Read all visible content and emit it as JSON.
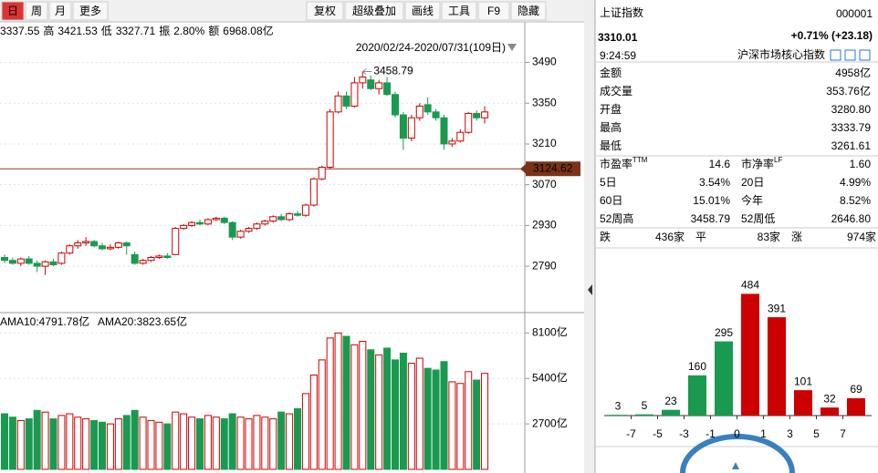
{
  "toolbar": {
    "left": [
      "日",
      "周",
      "月",
      "更多"
    ],
    "right": [
      "复权",
      "超级叠加",
      "画线",
      "工具",
      "F9",
      "隐藏"
    ]
  },
  "info_bar": [
    "3337.55",
    "高",
    "3421.53",
    "低",
    "3327.71",
    "振",
    "2.80%",
    "额",
    "6968.08亿"
  ],
  "kline": {
    "range": "2020/02/24-2020/07/31(109日)",
    "ylim": [
      2640,
      3570
    ],
    "yticks": [
      2790,
      2930,
      3070,
      3210,
      3350,
      3490
    ],
    "reference": {
      "value": 3124.62,
      "label": "3124.62"
    },
    "high_note": {
      "value": 3458.79,
      "label": "3458.79"
    },
    "candles": [
      [
        2820,
        2810,
        2830,
        2800
      ],
      [
        2810,
        2800,
        2820,
        2795
      ],
      [
        2800,
        2815,
        2820,
        2790
      ],
      [
        2815,
        2800,
        2825,
        2795
      ],
      [
        2800,
        2790,
        2810,
        2770
      ],
      [
        2790,
        2805,
        2810,
        2760
      ],
      [
        2805,
        2795,
        2815,
        2790
      ],
      [
        2800,
        2835,
        2840,
        2795
      ],
      [
        2835,
        2860,
        2865,
        2830
      ],
      [
        2860,
        2870,
        2880,
        2850
      ],
      [
        2870,
        2875,
        2890,
        2860
      ],
      [
        2875,
        2860,
        2880,
        2855
      ],
      [
        2860,
        2850,
        2870,
        2845
      ],
      [
        2850,
        2855,
        2865,
        2845
      ],
      [
        2855,
        2870,
        2875,
        2850
      ],
      [
        2870,
        2860,
        2875,
        2830
      ],
      [
        2830,
        2800,
        2840,
        2795
      ],
      [
        2800,
        2810,
        2815,
        2795
      ],
      [
        2810,
        2820,
        2825,
        2805
      ],
      [
        2820,
        2825,
        2830,
        2815
      ],
      [
        2825,
        2820,
        2835,
        2815
      ],
      [
        2830,
        2920,
        2925,
        2828
      ],
      [
        2920,
        2930,
        2935,
        2915
      ],
      [
        2930,
        2940,
        2945,
        2925
      ],
      [
        2940,
        2935,
        2950,
        2930
      ],
      [
        2935,
        2950,
        2955,
        2930
      ],
      [
        2950,
        2955,
        2960,
        2945
      ],
      [
        2955,
        2940,
        2960,
        2935
      ],
      [
        2940,
        2890,
        2945,
        2880
      ],
      [
        2890,
        2910,
        2915,
        2885
      ],
      [
        2910,
        2920,
        2925,
        2905
      ],
      [
        2920,
        2935,
        2940,
        2915
      ],
      [
        2935,
        2945,
        2950,
        2930
      ],
      [
        2945,
        2960,
        2965,
        2940
      ],
      [
        2960,
        2950,
        2970,
        2945
      ],
      [
        2950,
        2970,
        2975,
        2945
      ],
      [
        2970,
        2965,
        2980,
        2960
      ],
      [
        2965,
        3000,
        3005,
        2960
      ],
      [
        3000,
        3090,
        3095,
        2995
      ],
      [
        3090,
        3130,
        3135,
        3085
      ],
      [
        3130,
        3320,
        3330,
        3125
      ],
      [
        3320,
        3375,
        3390,
        3315
      ],
      [
        3375,
        3340,
        3390,
        3330
      ],
      [
        3340,
        3420,
        3440,
        3335
      ],
      [
        3420,
        3440,
        3458.79,
        3400
      ],
      [
        3430,
        3400,
        3445,
        3395
      ],
      [
        3400,
        3420,
        3430,
        3380
      ],
      [
        3420,
        3380,
        3440,
        3375
      ],
      [
        3380,
        3310,
        3390,
        3300
      ],
      [
        3310,
        3230,
        3320,
        3190
      ],
      [
        3230,
        3300,
        3310,
        3220
      ],
      [
        3300,
        3340,
        3350,
        3290
      ],
      [
        3345,
        3320,
        3370,
        3310
      ],
      [
        3320,
        3300,
        3330,
        3290
      ],
      [
        3300,
        3210,
        3310,
        3190
      ],
      [
        3210,
        3220,
        3230,
        3200
      ],
      [
        3220,
        3250,
        3260,
        3215
      ],
      [
        3250,
        3315,
        3320,
        3245
      ],
      [
        3315,
        3300,
        3325,
        3290
      ],
      [
        3300,
        3320,
        3340,
        3280
      ]
    ]
  },
  "volume": {
    "legend": [
      "AMA10:4791.78亿",
      "AMA20:3823.65亿"
    ],
    "ylim": [
      0,
      9200
    ],
    "yticks": [
      {
        "value": 2700,
        "label": "2700亿"
      },
      {
        "value": 5400,
        "label": "5400亿"
      },
      {
        "value": 8100,
        "label": "8100亿"
      }
    ],
    "values": [
      3300,
      3100,
      2900,
      3000,
      3500,
      3400,
      3000,
      3200,
      3300,
      3100,
      3000,
      2900,
      2800,
      2700,
      3000,
      3200,
      3500,
      3100,
      2900,
      2800,
      2700,
      3400,
      3300,
      3100,
      3000,
      3200,
      3100,
      3000,
      3300,
      3100,
      3000,
      3200,
      3100,
      3000,
      3400,
      3300,
      3600,
      4500,
      5600,
      6500,
      7800,
      8100,
      7900,
      7400,
      7600,
      7100,
      6800,
      7200,
      6500,
      6900,
      6300,
      6600,
      6000,
      5900,
      6400,
      5200,
      5100,
      5800,
      5300,
      5700
    ]
  },
  "quote": {
    "name": "上证指数",
    "code": "000001",
    "price": "3310.01",
    "change": "+0.71% (+23.18)",
    "time": "9:24:59",
    "link": "沪深市场核心指数"
  },
  "stats": [
    {
      "label": "金额",
      "value": "4958亿",
      "color": "#000"
    },
    {
      "label": "成交量",
      "value": "353.76亿",
      "color": "#000"
    },
    {
      "label": "开盘",
      "value": "3280.80",
      "color": "#008000"
    },
    {
      "label": "最高",
      "value": "3333.79",
      "color": "#d00"
    },
    {
      "label": "最低",
      "value": "3261.61",
      "color": "#008000"
    }
  ],
  "metrics": [
    [
      {
        "label": "市盈率",
        "sup": "TTM",
        "value": "14.6",
        "color": "#000"
      },
      {
        "label": "市净率",
        "sup": "LF",
        "value": "1.60",
        "color": "#000"
      }
    ],
    [
      {
        "label": "5日",
        "value": "3.54%",
        "color": "#d00"
      },
      {
        "label": "20日",
        "value": "4.99%",
        "color": "#d00"
      }
    ],
    [
      {
        "label": "60日",
        "value": "15.01%",
        "color": "#d00"
      },
      {
        "label": "今年",
        "value": "8.52%",
        "color": "#d00"
      }
    ],
    [
      {
        "label": "52周高",
        "value": "3458.79",
        "color": "#000"
      },
      {
        "label": "52周低",
        "value": "2646.80",
        "color": "#000"
      }
    ]
  ],
  "breadth": [
    {
      "label": "跌",
      "value": "436家",
      "color": "#008000"
    },
    {
      "label": "平",
      "value": "83家",
      "color": "#000"
    },
    {
      "label": "涨",
      "value": "974家",
      "color": "#d00"
    }
  ],
  "distribution": {
    "values": [
      3,
      5,
      23,
      160,
      295,
      484,
      391,
      101,
      32,
      69
    ],
    "colors": [
      "#1a9a50",
      "#1a9a50",
      "#1a9a50",
      "#1a9a50",
      "#1a9a50",
      "#cc0000",
      "#cc0000",
      "#cc0000",
      "#cc0000",
      "#cc0000"
    ],
    "ylim": [
      0,
      500
    ],
    "edge_labels": [
      "-7",
      "-5",
      "-3",
      "-1",
      "0",
      "1",
      "3",
      "5",
      "7"
    ],
    "edge_colors": [
      "#008000",
      "#008000",
      "#008000",
      "#008000",
      "#000",
      "#d00",
      "#d00",
      "#d00",
      "#d00"
    ]
  }
}
